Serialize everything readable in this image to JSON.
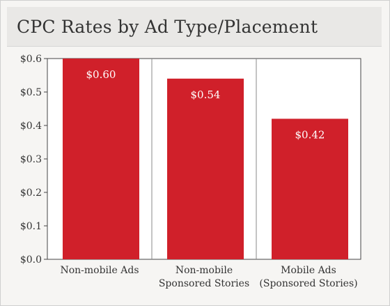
{
  "chart_data": {
    "type": "bar",
    "title": "CPC Rates by Ad Type/Placement",
    "categories": [
      [
        "Non-mobile Ads"
      ],
      [
        "Non-mobile",
        "Sponsored Stories"
      ],
      [
        "Mobile Ads",
        "(Sponsored Stories)"
      ]
    ],
    "values": [
      0.6,
      0.54,
      0.42
    ],
    "data_labels": [
      "$0.60",
      "$0.54",
      "$0.42"
    ],
    "y_ticks": [
      0.0,
      0.1,
      0.2,
      0.3,
      0.4,
      0.5,
      0.6
    ],
    "y_tick_labels": [
      "$0.0",
      "$0.1",
      "$0.2",
      "$0.3",
      "$0.4",
      "$0.5",
      "$0.6"
    ],
    "ylim": [
      0,
      0.6
    ],
    "xlabel": "",
    "ylabel": "",
    "grid": "vertical separators between categories",
    "bar_color": "#d0202a"
  }
}
